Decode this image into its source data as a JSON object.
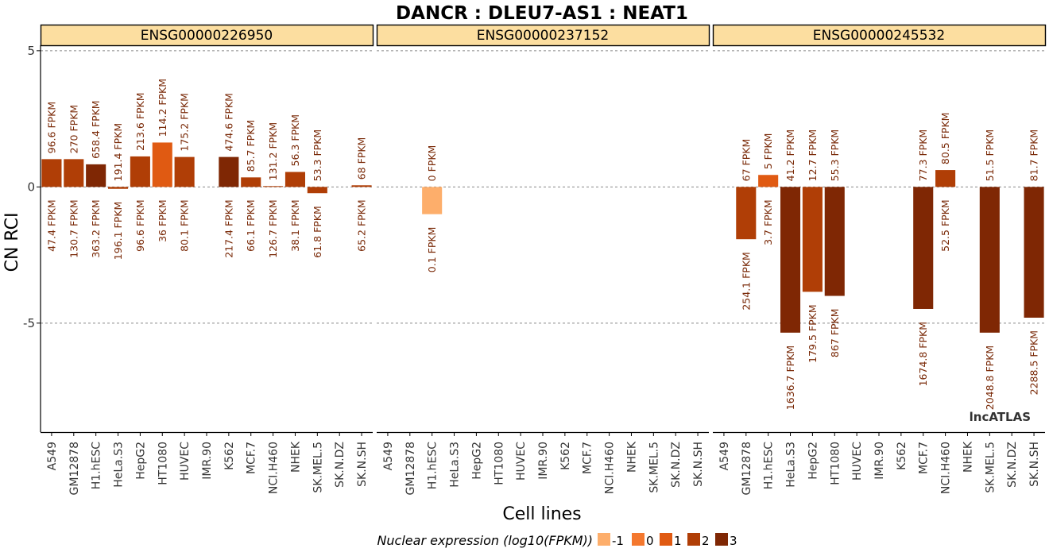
{
  "title": "DANCR : DLEU7-AS1 : NEAT1",
  "ylabel": "CN RCI",
  "xlabel": "Cell lines",
  "watermark": "lncATLAS",
  "legend": {
    "title": "Nuclear expression (log10(FPKM))",
    "items": [
      {
        "label": "-1",
        "color": "#FDAE6B"
      },
      {
        "label": "0",
        "color": "#F4782E"
      },
      {
        "label": "1",
        "color": "#E05A12"
      },
      {
        "label": "2",
        "color": "#B03E06"
      },
      {
        "label": "3",
        "color": "#7F2704"
      }
    ]
  },
  "chart_data": {
    "type": "bar",
    "title": "DANCR : DLEU7-AS1 : NEAT1",
    "xlabel": "Cell lines",
    "ylabel": "CN RCI",
    "ylim": [
      -9,
      5.2
    ],
    "yticks": [
      5,
      0,
      -5
    ],
    "ytick_labels": [
      "5",
      "0",
      "-5"
    ],
    "grid": "horizontal dashed at 5, 0, -5",
    "legend_position": "bottom",
    "categories": [
      "A549",
      "GM12878",
      "H1.hESC",
      "HeLa.S3",
      "HepG2",
      "HT1080",
      "HUVEC",
      "IMR.90",
      "K562",
      "MCF.7",
      "NCI.H460",
      "NHEK",
      "SK.MEL.5",
      "SK.N.DZ",
      "SK.N.SH"
    ],
    "panels": [
      {
        "strip": "ENSG00000226950",
        "values": [
          1.02,
          1.02,
          0.83,
          -0.07,
          1.12,
          1.63,
          1.1,
          null,
          1.1,
          0.35,
          0.03,
          0.55,
          -0.23,
          null,
          0.06
        ],
        "level": [
          2,
          2,
          3,
          2,
          2,
          1,
          2,
          null,
          3,
          2,
          2,
          2,
          2,
          null,
          2
        ],
        "label_top": [
          "96.6 FPKM",
          "270 FPKM",
          "658.4 FPKM",
          "191.4 FPKM",
          "213.6 FPKM",
          "114.2 FPKM",
          "175.2 FPKM",
          "",
          "474.6 FPKM",
          "85.7 FPKM",
          "131.2 FPKM",
          "56.3 FPKM",
          "53.3 FPKM",
          "",
          "68 FPKM"
        ],
        "label_bottom": [
          "47.4 FPKM",
          "130.7 FPKM",
          "363.2 FPKM",
          "196.1 FPKM",
          "96.6 FPKM",
          "36 FPKM",
          "80.1 FPKM",
          "",
          "217.4 FPKM",
          "66.1 FPKM",
          "126.7 FPKM",
          "38.1 FPKM",
          "61.8 FPKM",
          "",
          "65.2 FPKM"
        ]
      },
      {
        "strip": "ENSG00000237152",
        "values": [
          null,
          null,
          -1.0,
          null,
          null,
          null,
          null,
          null,
          null,
          null,
          null,
          null,
          null,
          null,
          null
        ],
        "level": [
          null,
          null,
          -1,
          null,
          null,
          null,
          null,
          null,
          null,
          null,
          null,
          null,
          null,
          null,
          null
        ],
        "label_top": [
          "",
          "",
          "0 FPKM",
          "",
          "",
          "",
          "",
          "",
          "",
          "",
          "",
          "",
          "",
          "",
          ""
        ],
        "label_bottom": [
          "",
          "",
          "0.1 FPKM",
          "",
          "",
          "",
          "",
          "",
          "",
          "",
          "",
          "",
          "",
          "",
          ""
        ]
      },
      {
        "strip": "ENSG00000245532",
        "values": [
          null,
          -1.92,
          0.44,
          -5.35,
          -3.85,
          -4.0,
          null,
          null,
          null,
          -4.48,
          0.62,
          null,
          -5.35,
          null,
          -4.8
        ],
        "level": [
          null,
          2,
          1,
          3,
          2,
          3,
          null,
          null,
          null,
          3,
          2,
          null,
          3,
          null,
          3
        ],
        "label_top": [
          "",
          "67 FPKM",
          "5 FPKM",
          "41.2 FPKM",
          "12.7 FPKM",
          "55.3 FPKM",
          "",
          "",
          "",
          "77.3 FPKM",
          "80.5 FPKM",
          "",
          "51.5 FPKM",
          "",
          "81.7 FPKM"
        ],
        "label_bottom": [
          "",
          "254.1 FPKM",
          "3.7 FPKM",
          "1636.7 FPKM",
          "179.5 FPKM",
          "867 FPKM",
          "",
          "",
          "",
          "1674.8 FPKM",
          "52.5 FPKM",
          "",
          "2048.8 FPKM",
          "",
          "2288.5 FPKM"
        ]
      }
    ]
  }
}
